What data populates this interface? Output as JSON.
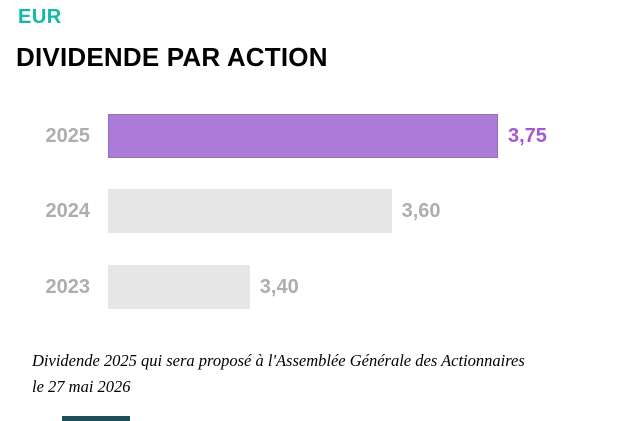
{
  "header": {
    "currency": "EUR",
    "title": "DIVIDENDE PAR ACTION"
  },
  "colors": {
    "accent_teal": "#14B8A6",
    "highlight_bar": "#AC7BD8",
    "highlight_value_text": "#A458D0",
    "muted_bar": "#E6E6E6",
    "muted_text": "#AEAEAE",
    "footer_mark": "#1D4E5A"
  },
  "chart_data": {
    "type": "bar",
    "orientation": "horizontal",
    "title": "DIVIDENDE PAR ACTION",
    "unit": "EUR",
    "categories": [
      "2025",
      "2024",
      "2023"
    ],
    "values": [
      3.75,
      3.6,
      3.4
    ],
    "value_labels": [
      "3,75",
      "3,60",
      "3,40"
    ],
    "highlighted_category": "2025",
    "xlim": [
      3.2,
      3.75
    ],
    "grid": false,
    "legend": false,
    "value_label_position": "end-of-bar"
  },
  "footnote": {
    "text": "Dividende 2025 qui sera proposé à l'Assemblée Générale des Actionnaires le 27 mai 2026",
    "lines": [
      "Dividende 2025 qui sera proposé à l'Assemblée Générale des Actionnaires",
      "le 27 mai 2026"
    ]
  }
}
